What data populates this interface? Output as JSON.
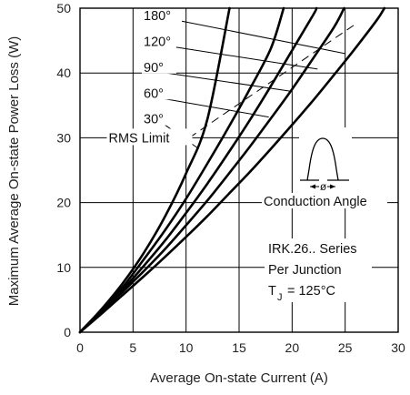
{
  "chart_data": {
    "type": "line",
    "title": "",
    "xlabel": "Average On-state Current (A)",
    "ylabel": "Maximum Average On-state Power Loss (W)",
    "xlim": [
      0,
      30
    ],
    "ylim": [
      0,
      50
    ],
    "x_ticks": [
      "0",
      "5",
      "10",
      "15",
      "20",
      "25",
      "30"
    ],
    "y_ticks": [
      "0",
      "10",
      "20",
      "30",
      "40",
      "50"
    ],
    "grid": true,
    "series": [
      {
        "name": "180°",
        "label_pos": [
          6.0,
          48.2
        ],
        "points": [
          [
            0,
            0
          ],
          [
            2,
            3.5
          ],
          [
            4,
            7.5
          ],
          [
            6,
            12.2
          ],
          [
            8,
            17.8
          ],
          [
            10,
            24.5
          ],
          [
            12,
            32.8
          ],
          [
            14.1,
            50
          ]
        ]
      },
      {
        "name": "120°",
        "label_pos": [
          6.0,
          44.2
        ],
        "points": [
          [
            0,
            0
          ],
          [
            2,
            3.3
          ],
          [
            4,
            6.9
          ],
          [
            6,
            11.2
          ],
          [
            8,
            15.7
          ],
          [
            10,
            20.6
          ],
          [
            12,
            26.0
          ],
          [
            14,
            31.6
          ],
          [
            16,
            37.5
          ],
          [
            18,
            43.8
          ],
          [
            19.2,
            50
          ]
        ]
      },
      {
        "name": "90°",
        "label_pos": [
          6.0,
          40.2
        ],
        "points": [
          [
            0,
            0
          ],
          [
            2,
            3.2
          ],
          [
            4,
            6.5
          ],
          [
            6,
            10.2
          ],
          [
            8,
            14.1
          ],
          [
            10,
            18.4
          ],
          [
            12,
            22.9
          ],
          [
            14,
            27.7
          ],
          [
            16,
            32.7
          ],
          [
            18,
            38.0
          ],
          [
            20,
            43.5
          ],
          [
            22,
            49.0
          ],
          [
            22.3,
            50
          ]
        ]
      },
      {
        "name": "60°",
        "label_pos": [
          6.0,
          36.2
        ],
        "points": [
          [
            0,
            0
          ],
          [
            2,
            3.0
          ],
          [
            4,
            6.2
          ],
          [
            6,
            9.4
          ],
          [
            8,
            12.8
          ],
          [
            10,
            16.5
          ],
          [
            12,
            20.3
          ],
          [
            14,
            24.4
          ],
          [
            16,
            28.6
          ],
          [
            18,
            33.0
          ],
          [
            20,
            37.5
          ],
          [
            22,
            42.3
          ],
          [
            24,
            47.2
          ],
          [
            24.9,
            50
          ]
        ]
      },
      {
        "name": "30°",
        "label_pos": [
          6.0,
          32.2
        ],
        "points": [
          [
            0,
            0
          ],
          [
            2,
            2.8
          ],
          [
            4,
            5.7
          ],
          [
            6,
            8.6
          ],
          [
            8,
            11.6
          ],
          [
            10,
            14.7
          ],
          [
            12,
            17.9
          ],
          [
            14,
            21.3
          ],
          [
            16,
            24.7
          ],
          [
            18,
            28.3
          ],
          [
            20,
            32.0
          ],
          [
            22,
            35.8
          ],
          [
            24,
            39.8
          ],
          [
            26,
            43.9
          ],
          [
            28,
            48.2
          ],
          [
            28.7,
            50
          ]
        ]
      }
    ],
    "leader_lines": [
      {
        "from": [
          9.6,
          48.0
        ],
        "to": [
          25.0,
          43.0
        ]
      },
      {
        "from": [
          9.0,
          44.0
        ],
        "to": [
          22.4,
          40.6
        ]
      },
      {
        "from": [
          8.2,
          40.0
        ],
        "to": [
          19.8,
          37.2
        ]
      },
      {
        "from": [
          8.0,
          36.0
        ],
        "to": [
          17.8,
          33.2
        ]
      },
      {
        "from": [
          8.0,
          32.0
        ],
        "to": [
          11.2,
          28.3
        ]
      }
    ],
    "rms_limit": {
      "label": "RMS Limit",
      "label_pos": [
        2.7,
        30.0
      ],
      "points": [
        [
          10.3,
          30.0
        ],
        [
          26.2,
          47.8
        ]
      ]
    },
    "conduction_angle_inset": {
      "label": "Conduction Angle",
      "symbol": "ø"
    },
    "annotations": [
      "IRK.26.. Series",
      "Per Junction",
      "T",
      "J",
      "= 125°C"
    ]
  }
}
